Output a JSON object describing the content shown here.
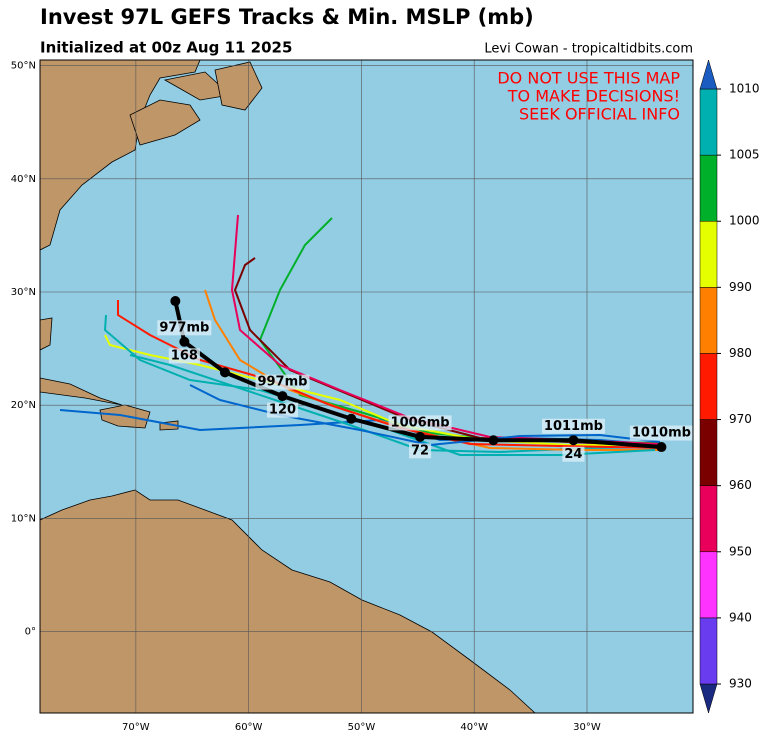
{
  "header": {
    "title": "Invest 97L GEFS Tracks & Min. MSLP (mb)",
    "subtitle": "Initialized at 00z Aug 11 2025",
    "credit": "Levi Cowan - tropicaltidbits.com"
  },
  "warning": [
    "DO NOT USE THIS MAP",
    "TO MAKE DECISIONS!",
    "SEEK OFFICIAL INFO"
  ],
  "map": {
    "lonlim": [
      -78.5,
      -20.6
    ],
    "latlim": [
      -7.2,
      50.5
    ],
    "lat_ticks": [
      {
        "value": 50,
        "label": "50°N"
      },
      {
        "value": 40,
        "label": "40°N"
      },
      {
        "value": 30,
        "label": "30°N"
      },
      {
        "value": 20,
        "label": "20°N"
      },
      {
        "value": 10,
        "label": "10°N"
      },
      {
        "value": 0,
        "label": "0°"
      }
    ],
    "lon_ticks": [
      {
        "value": -70,
        "label": "70°W"
      },
      {
        "value": -60,
        "label": "60°W"
      },
      {
        "value": -50,
        "label": "50°W"
      },
      {
        "value": -40,
        "label": "40°W"
      },
      {
        "value": -30,
        "label": "30°W"
      }
    ]
  },
  "mean_track": [
    {
      "lon": -23.4,
      "lat": 16.3,
      "pressure_label": "1010mb"
    },
    {
      "lon": -31.2,
      "lat": 16.9,
      "hour_label": "24",
      "pressure_label": "1011mb"
    },
    {
      "lon": -38.3,
      "lat": 16.9
    },
    {
      "lon": -44.8,
      "lat": 17.2,
      "hour_label": "72",
      "pressure_label": "1006mb"
    },
    {
      "lon": -50.9,
      "lat": 18.8
    },
    {
      "lon": -57.0,
      "lat": 20.8,
      "hour_label": "120",
      "pressure_label": "997mb"
    },
    {
      "lon": -62.1,
      "lat": 22.9
    },
    {
      "lon": -65.7,
      "lat": 25.6,
      "hour_label": "168",
      "pressure_label": "977mb"
    },
    {
      "lon": -66.5,
      "lat": 29.2
    }
  ],
  "colorbar": {
    "ticks": [
      930,
      940,
      950,
      960,
      970,
      980,
      990,
      1000,
      1005,
      1010
    ],
    "colors": [
      "#1a2a80",
      "#6a3cf0",
      "#ff33ff",
      "#e8005a",
      "#7a0000",
      "#ff1a00",
      "#ff8000",
      "#e6ff00",
      "#00b02a",
      "#00b0b0",
      "#1a5cbf"
    ]
  }
}
